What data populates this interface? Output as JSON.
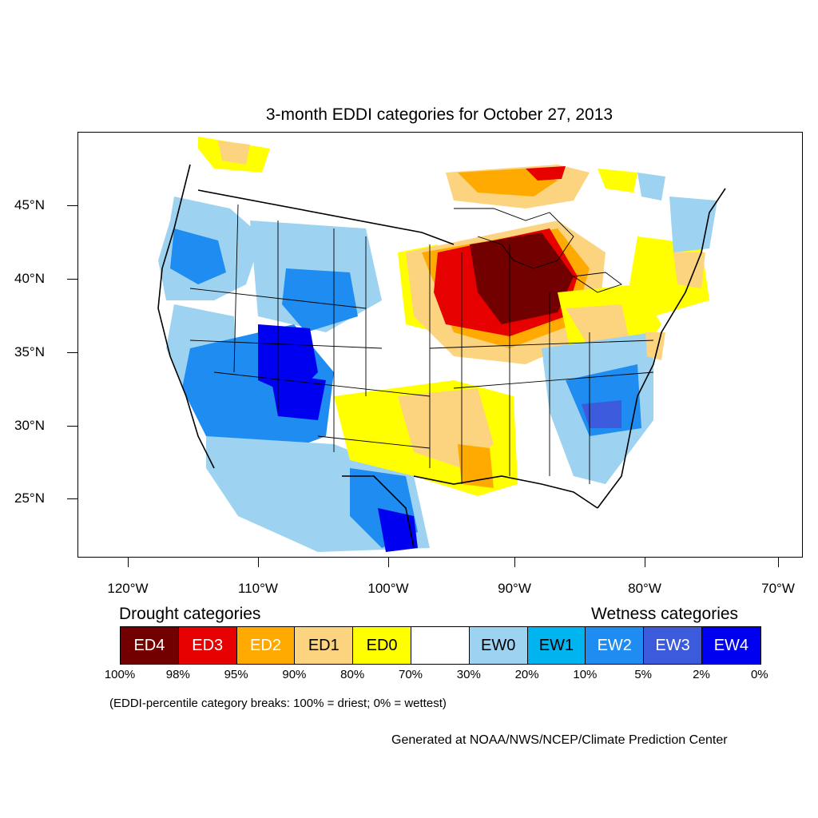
{
  "title": "3-month EDDI categories for October 27, 2013",
  "lat_labels": [
    "45°N",
    "40°N",
    "35°N",
    "30°N",
    "25°N"
  ],
  "lon_labels": [
    "120°W",
    "110°W",
    "100°W",
    "90°W",
    "80°W",
    "70°W"
  ],
  "legend": {
    "drought_heading": "Drought categories",
    "wetness_heading": "Wetness categories",
    "categories": [
      {
        "label": "ED4",
        "color": "#730000",
        "text_color": "#ffffff"
      },
      {
        "label": "ED3",
        "color": "#e60000",
        "text_color": "#ffffff"
      },
      {
        "label": "ED2",
        "color": "#ffaa00",
        "text_color": "#ffffff"
      },
      {
        "label": "ED1",
        "color": "#fcd37f",
        "text_color": "#000000"
      },
      {
        "label": "ED0",
        "color": "#ffff00",
        "text_color": "#000000"
      },
      {
        "label": "",
        "color": "#ffffff",
        "text_color": "#000000"
      },
      {
        "label": "EW0",
        "color": "#9dd3f0",
        "text_color": "#000000"
      },
      {
        "label": "EW1",
        "color": "#00b4f0",
        "text_color": "#000000"
      },
      {
        "label": "EW2",
        "color": "#1e8cf0",
        "text_color": "#ffffff"
      },
      {
        "label": "EW3",
        "color": "#3c5adc",
        "text_color": "#ffffff"
      },
      {
        "label": "EW4",
        "color": "#0000f0",
        "text_color": "#ffffff"
      }
    ],
    "breaks": [
      "100%",
      "98%",
      "95%",
      "90%",
      "80%",
      "70%",
      "30%",
      "20%",
      "10%",
      "5%",
      "2%",
      "0%"
    ]
  },
  "note": "(EDDI-percentile category breaks: 100% = driest; 0% = wettest)",
  "credit": "Generated at NOAA/NWS/NCEP/Climate Prediction Center"
}
